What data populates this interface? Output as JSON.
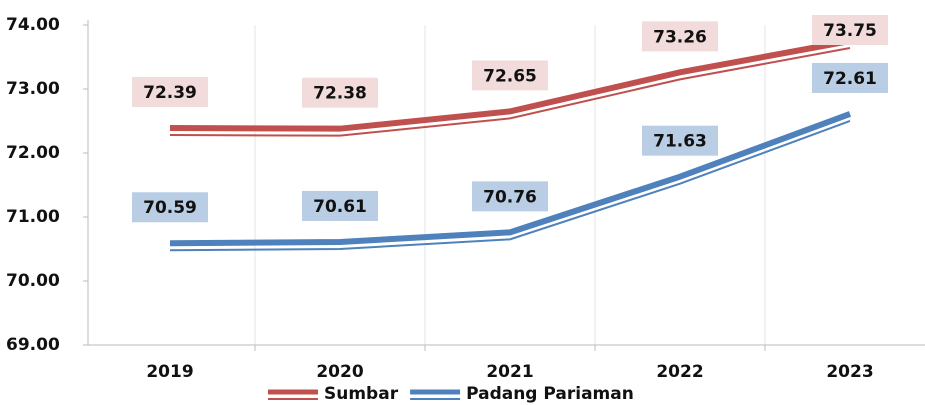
{
  "chart_data": {
    "type": "line",
    "categories": [
      "2019",
      "2020",
      "2021",
      "2022",
      "2023"
    ],
    "series": [
      {
        "name": "Sumbar",
        "color": "#c0504d",
        "label_bg": "#f2dcdb",
        "values": [
          72.39,
          72.38,
          72.65,
          73.26,
          73.75
        ]
      },
      {
        "name": "Padang Pariaman",
        "color": "#4f81bd",
        "label_bg": "#b9cde5",
        "values": [
          70.59,
          70.61,
          70.76,
          71.63,
          72.61
        ]
      }
    ],
    "ylim": [
      69,
      74
    ],
    "yticks": [
      {
        "value": 69,
        "label": "69.00"
      },
      {
        "value": 70,
        "label": "70.00"
      },
      {
        "value": 71,
        "label": "71.00"
      },
      {
        "value": 72,
        "label": "72.00"
      },
      {
        "value": 73,
        "label": "73.00"
      },
      {
        "value": 74,
        "label": "74.00"
      }
    ],
    "grid": true,
    "legend": "bottom"
  }
}
